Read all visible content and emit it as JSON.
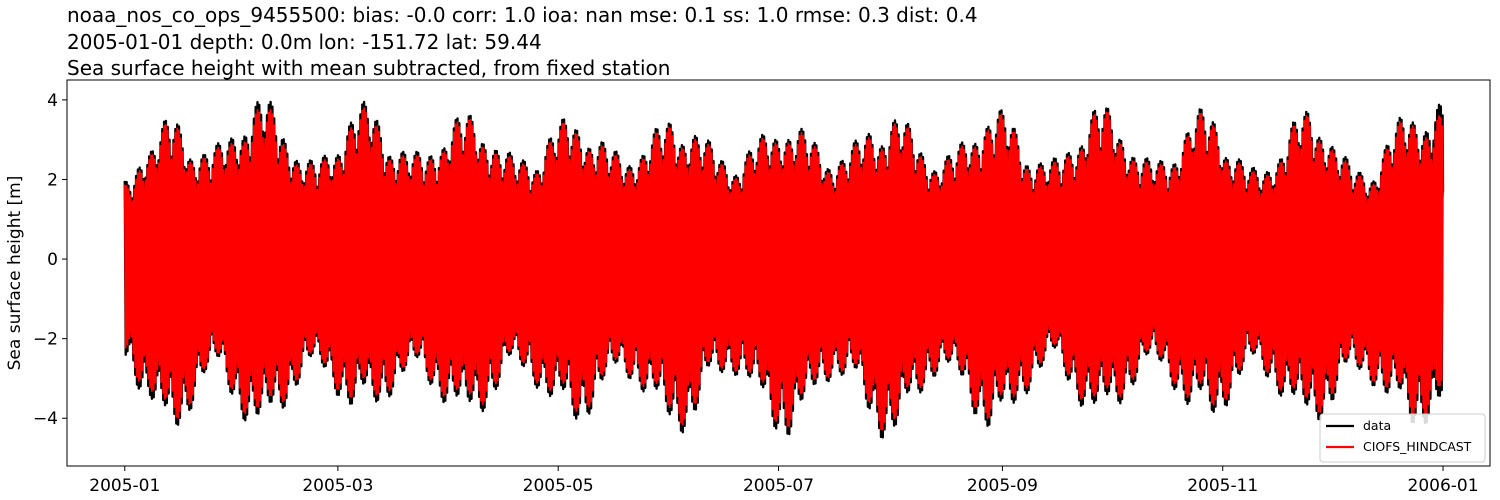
{
  "chart_data": {
    "type": "line",
    "title_lines": [
      "noaa_nos_co_ops_9455500: bias: -0.0  corr: 1.0  ioa: nan  mse: 0.1  ss: 1.0  rmse: 0.3  dist: 0.4",
      "2005-01-01 depth: 0.0m lon: -151.72 lat: 59.44",
      "Sea surface height with mean subtracted, from fixed station"
    ],
    "ylabel": "Sea surface height [m]",
    "xlabel": "",
    "x_range": [
      "2004-12-16",
      "2006-01-14"
    ],
    "ylim": [
      -5.2,
      4.5
    ],
    "x_ticks": [
      "2005-01",
      "2005-03",
      "2005-05",
      "2005-07",
      "2005-09",
      "2005-11",
      "2006-01"
    ],
    "y_ticks": [
      "4",
      "2",
      "0",
      "−2",
      "−4"
    ],
    "y_tick_values": [
      4,
      2,
      0,
      -2,
      -4
    ],
    "grid": false,
    "legend_position": "lower-right",
    "series": [
      {
        "name": "data",
        "color": "#000000",
        "envelope": {
          "dates": [
            "2005-01-01",
            "2005-01-07",
            "2005-01-14",
            "2005-01-24",
            "2005-02-08",
            "2005-02-22",
            "2005-03-08",
            "2005-03-22",
            "2005-04-06",
            "2005-04-20",
            "2005-05-05",
            "2005-05-19",
            "2005-06-03",
            "2005-06-18",
            "2005-07-03",
            "2005-07-17",
            "2005-08-01",
            "2005-08-15",
            "2005-08-30",
            "2005-09-14",
            "2005-09-28",
            "2005-10-13",
            "2005-10-27",
            "2005-11-10",
            "2005-11-25",
            "2005-12-09",
            "2005-12-24",
            "2006-01-01"
          ],
          "upper": [
            2.0,
            3.0,
            3.6,
            2.8,
            4.1,
            2.5,
            3.95,
            2.7,
            3.7,
            2.6,
            3.6,
            2.7,
            3.6,
            2.6,
            3.5,
            2.7,
            3.7,
            2.6,
            3.8,
            2.5,
            3.9,
            2.5,
            3.8,
            2.3,
            3.8,
            2.3,
            3.8,
            4.0
          ],
          "lower": [
            -2.8,
            -3.5,
            -4.7,
            -3.0,
            -4.4,
            -2.9,
            -4.0,
            -3.0,
            -4.1,
            -2.9,
            -4.2,
            -3.0,
            -4.4,
            -2.9,
            -4.5,
            -3.0,
            -4.6,
            -2.9,
            -4.4,
            -2.8,
            -4.1,
            -2.8,
            -4.2,
            -2.9,
            -4.2,
            -3.0,
            -4.3,
            -3.9
          ]
        }
      },
      {
        "name": "CIOFS_HINDCAST",
        "color": "#ff0000",
        "envelope": {
          "dates": [
            "2005-01-01",
            "2005-01-07",
            "2005-01-14",
            "2005-01-24",
            "2005-02-08",
            "2005-02-22",
            "2005-03-08",
            "2005-03-22",
            "2005-04-06",
            "2005-04-20",
            "2005-05-05",
            "2005-05-19",
            "2005-06-03",
            "2005-06-18",
            "2005-07-03",
            "2005-07-17",
            "2005-08-01",
            "2005-08-15",
            "2005-08-30",
            "2005-09-14",
            "2005-09-28",
            "2005-10-13",
            "2005-10-27",
            "2005-11-10",
            "2005-11-25",
            "2005-12-09",
            "2005-12-24",
            "2006-01-01"
          ],
          "upper": [
            1.9,
            2.9,
            3.5,
            2.7,
            3.9,
            2.4,
            3.8,
            2.6,
            3.6,
            2.5,
            3.5,
            2.6,
            3.5,
            2.5,
            3.4,
            2.6,
            3.6,
            2.5,
            3.7,
            2.4,
            3.8,
            2.4,
            3.7,
            2.2,
            3.7,
            2.2,
            3.7,
            3.7
          ],
          "lower": [
            -2.6,
            -3.3,
            -4.5,
            -2.9,
            -4.2,
            -2.8,
            -3.8,
            -2.9,
            -3.9,
            -2.8,
            -4.0,
            -2.9,
            -4.2,
            -2.8,
            -4.3,
            -2.9,
            -4.4,
            -2.8,
            -4.2,
            -2.7,
            -3.9,
            -2.7,
            -4.0,
            -2.8,
            -4.0,
            -2.9,
            -4.1,
            -3.6
          ]
        }
      }
    ]
  }
}
